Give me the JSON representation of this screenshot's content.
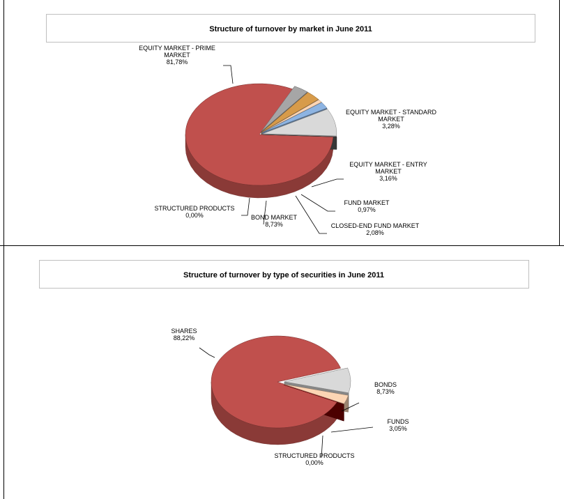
{
  "chart_data": [
    {
      "type": "pie",
      "title": "Structure of turnover by market in June 2011",
      "slices": [
        {
          "label": [
            "EQUITY MARKET - PRIME",
            "MARKET"
          ],
          "value_label": "81,78%",
          "value": 81.78,
          "color": "#c0504d"
        },
        {
          "label": [
            "EQUITY MARKET - STANDARD",
            "MARKET"
          ],
          "value_label": "3,28%",
          "value": 3.28,
          "color": "#a6a6a6"
        },
        {
          "label": [
            "EQUITY MARKET - ENTRY",
            "MARKET"
          ],
          "value_label": "3,16%",
          "value": 3.16,
          "color": "#d79b4a"
        },
        {
          "label": [
            "FUND MARKET"
          ],
          "value_label": "0,97%",
          "value": 0.97,
          "color": "#fcd5b4"
        },
        {
          "label": [
            "CLOSED-END FUND MARKET"
          ],
          "value_label": "2,08%",
          "value": 2.08,
          "color": "#8db4e2"
        },
        {
          "label": [
            "BOND MARKET"
          ],
          "value_label": "8,73%",
          "value": 8.73,
          "color": "#d9d9d9"
        },
        {
          "label": [
            "STRUCTURED PRODUCTS"
          ],
          "value_label": "0,00%",
          "value": 0.0,
          "color": "#595959"
        }
      ]
    },
    {
      "type": "pie",
      "title": "Structure of turnover by type of securities in June 2011",
      "slices": [
        {
          "label": [
            "SHARES"
          ],
          "value_label": "88,22%",
          "value": 88.22,
          "color": "#c0504d"
        },
        {
          "label": [
            "BONDS"
          ],
          "value_label": "8,73%",
          "value": 8.73,
          "color": "#d9d9d9"
        },
        {
          "label": [
            "FUNDS"
          ],
          "value_label": "3,05%",
          "value": 3.05,
          "color": "#fcd5b4"
        },
        {
          "label": [
            "STRUCTURED PRODUCTS"
          ],
          "value_label": "0,00%",
          "value": 0.0,
          "color": "#7b0000"
        }
      ]
    }
  ]
}
